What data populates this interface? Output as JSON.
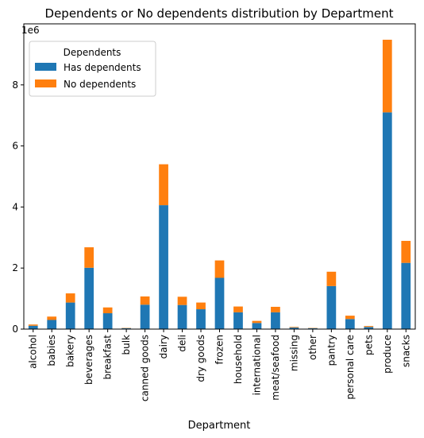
{
  "chart_data": {
    "type": "stacked-bar",
    "title": "Dependents or No dependents distribution by Department",
    "xlabel": "Department",
    "ylabel": "",
    "y_scale_label": "1e6",
    "ylim": [
      0,
      10
    ],
    "yticks": [
      0,
      2,
      4,
      6,
      8
    ],
    "categories": [
      "alcohol",
      "babies",
      "bakery",
      "beverages",
      "breakfast",
      "bulk",
      "canned goods",
      "dairy",
      "deli",
      "dry goods",
      "frozen",
      "household",
      "international",
      "meat/seafood",
      "missing",
      "other",
      "pantry",
      "personal care",
      "pets",
      "produce",
      "snacks"
    ],
    "series": [
      {
        "name": "Has dependents",
        "color": "#1f77b4",
        "values": [
          0.11,
          0.3,
          0.87,
          2.01,
          0.52,
          0.03,
          0.8,
          4.06,
          0.79,
          0.65,
          1.68,
          0.55,
          0.2,
          0.55,
          0.05,
          0.03,
          1.41,
          0.33,
          0.07,
          7.1,
          2.17
        ]
      },
      {
        "name": "No dependents",
        "color": "#ff7f0e",
        "values": [
          0.04,
          0.11,
          0.3,
          0.67,
          0.19,
          0.01,
          0.27,
          1.34,
          0.27,
          0.22,
          0.57,
          0.19,
          0.07,
          0.18,
          0.02,
          0.01,
          0.47,
          0.11,
          0.03,
          2.38,
          0.72
        ]
      }
    ],
    "legend": {
      "title": "Dependents",
      "position": "top-left"
    }
  }
}
